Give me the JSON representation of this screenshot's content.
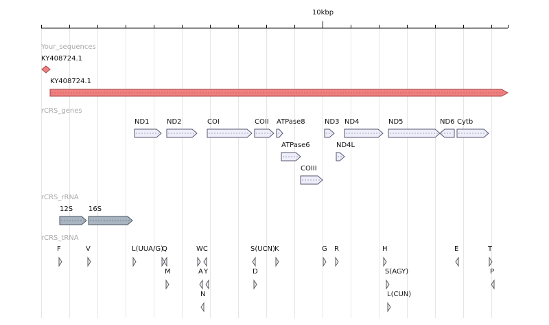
{
  "ruler": {
    "label": "10kbp"
  },
  "colors": {
    "sequence_fill": "#f08080",
    "sequence_stroke": "#a04545",
    "gene_fill": "#eeeefa",
    "gene_stroke": "#55556e",
    "rrna_fill": "#a8b5c0",
    "rrna_stroke": "#4a5560",
    "trna_fill": "#eeeefa",
    "trna_stroke": "#5a5a5a",
    "gridline": "#e6e6e6",
    "track_label": "#a9a9a9"
  },
  "tracks": {
    "sequences": {
      "title": "Your_sequences",
      "marker_label": "KY408724.1",
      "bar_label": "KY408724.1"
    },
    "genes": {
      "title": "rCRS_genes",
      "items": [
        {
          "label": "ND1",
          "row": 0
        },
        {
          "label": "ND2",
          "row": 0
        },
        {
          "label": "COI",
          "row": 0
        },
        {
          "label": "COII",
          "row": 0
        },
        {
          "label": "ATPase8",
          "row": 0
        },
        {
          "label": "ND3",
          "row": 0
        },
        {
          "label": "ND4",
          "row": 0
        },
        {
          "label": "ND5",
          "row": 0
        },
        {
          "label": "ND6",
          "row": 0
        },
        {
          "label": "Cytb",
          "row": 0
        },
        {
          "label": "ATPase6",
          "row": 1
        },
        {
          "label": "ND4L",
          "row": 1
        },
        {
          "label": "COIII",
          "row": 2
        }
      ]
    },
    "rrna": {
      "title": "rCRS_rRNA",
      "items": [
        {
          "label": "12S"
        },
        {
          "label": "16S"
        }
      ]
    },
    "trna": {
      "title": "rCRS_tRNA",
      "items": [
        {
          "label": "F"
        },
        {
          "label": "V"
        },
        {
          "label": "L(UUA/G)"
        },
        {
          "label": "Q"
        },
        {
          "label": "WC"
        },
        {
          "label": "S(UCN)"
        },
        {
          "label": "K"
        },
        {
          "label": "G"
        },
        {
          "label": "R"
        },
        {
          "label": "H"
        },
        {
          "label": "E"
        },
        {
          "label": "T"
        },
        {
          "label": "M"
        },
        {
          "label": "A"
        },
        {
          "label": "Y"
        },
        {
          "label": "D"
        },
        {
          "label": "S(AGY)"
        },
        {
          "label": "P"
        },
        {
          "label": "N"
        },
        {
          "label": "L(CUN)"
        }
      ]
    }
  }
}
